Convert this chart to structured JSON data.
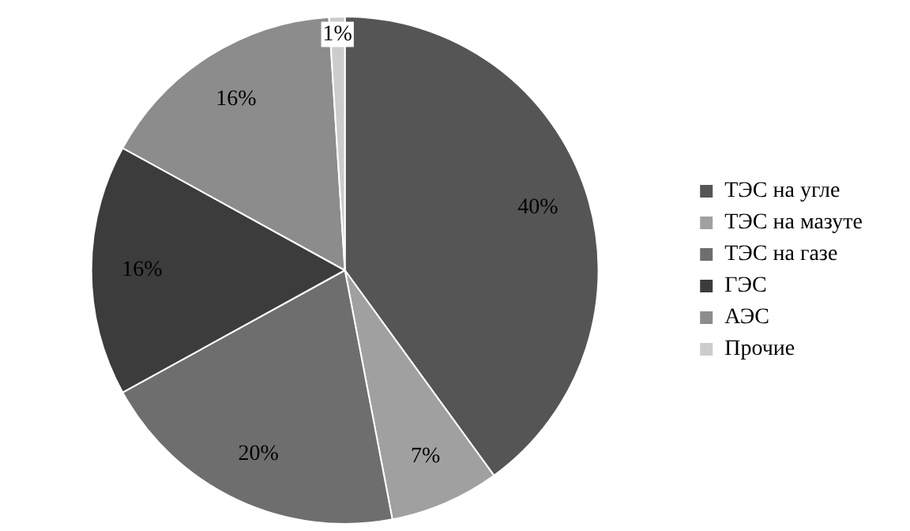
{
  "chart_data": {
    "type": "pie",
    "categories": [
      "ТЭС на угле",
      "ТЭС на мазуте",
      "ТЭС на газе",
      "ГЭС",
      "АЭС",
      "Прочие"
    ],
    "values": [
      40,
      7,
      20,
      16,
      16,
      1
    ],
    "colors": [
      "#555555",
      "#a0a0a0",
      "#6e6e6e",
      "#3c3c3c",
      "#8c8c8c",
      "#cccccc"
    ],
    "value_labels": [
      "40%",
      "7%",
      "20%",
      "16%",
      "16%",
      "1%"
    ],
    "legend": "right"
  }
}
